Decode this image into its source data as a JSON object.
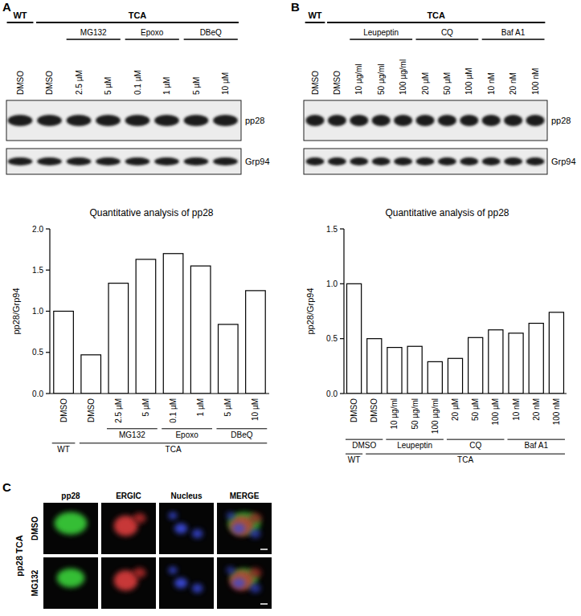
{
  "chart_data": [
    {
      "type": "bar",
      "title": "Quantitative analysis of pp28",
      "y_label": "pp28/Grp94",
      "categories": [
        "DMSO",
        "DMSO",
        "2.5 µM",
        "5 µM",
        "0.1 µM",
        "1 µM",
        "5 µM",
        "10 µM"
      ],
      "values": [
        1.0,
        0.47,
        1.34,
        1.63,
        1.7,
        1.55,
        0.84,
        1.25
      ],
      "color": "#ffffff",
      "ylim": [
        0,
        2
      ],
      "yticks": [
        {
          "value": 0,
          "label": "0.0"
        },
        0.5,
        {
          "value": 1,
          "label": "1.0"
        },
        1.5,
        {
          "value": 2,
          "label": "2.0"
        }
      ],
      "groups": [
        [
          {
            "label": "MG132",
            "categories": [
              2,
              3
            ]
          },
          {
            "label": "Epoxo",
            "categories": [
              4,
              5
            ]
          },
          {
            "label": "DBeQ",
            "categories": [
              6,
              7
            ]
          }
        ],
        [
          {
            "label": "WT",
            "categories": [
              0
            ]
          },
          {
            "label": "TCA",
            "categories": [
              1,
              2,
              3,
              4,
              5,
              6,
              7
            ]
          }
        ]
      ]
    },
    {
      "type": "bar",
      "title": "Quantitative analysis of pp28",
      "y_label": "pp28/Grp94",
      "categories": [
        "DMSO",
        "DMSO",
        "10 µg/ml",
        "50 µg/ml",
        "100 µg/ml",
        "20 µM",
        "50 µM",
        "100 µM",
        "10 nM",
        "20 nM",
        "100 nM"
      ],
      "values": [
        1.0,
        0.5,
        0.42,
        0.43,
        0.29,
        0.32,
        0.51,
        0.58,
        0.55,
        0.64,
        0.74
      ],
      "color": "#ffffff",
      "ylim": [
        0,
        1.5
      ],
      "yticks": [
        {
          "value": 0,
          "label": "0.0"
        },
        0.5,
        {
          "value": 1,
          "label": "1.0"
        },
        1.5
      ],
      "groups": [
        [
          {
            "label": "DMSO",
            "categories": [
              0,
              1
            ]
          },
          {
            "label": "Leupeptin",
            "categories": [
              2,
              3,
              4
            ]
          },
          {
            "label": "CQ",
            "categories": [
              5,
              6,
              7
            ]
          },
          {
            "label": "Baf A1",
            "categories": [
              8,
              9,
              10
            ]
          }
        ],
        [
          {
            "label": "WT",
            "categories": [
              0
            ]
          },
          {
            "label": "TCA",
            "categories": [
              1,
              2,
              3,
              4,
              5,
              6,
              7,
              8,
              9,
              10
            ]
          }
        ]
      ]
    }
  ],
  "blots": [
    {
      "panel": "A",
      "conditions": [
        {
          "label": "WT",
          "lanes": [
            0
          ]
        },
        {
          "label": "TCA",
          "lanes": [
            1,
            2,
            3,
            4,
            5,
            6,
            7
          ]
        }
      ],
      "treatments": [
        {
          "label": "MG132",
          "lanes": [
            2,
            3
          ]
        },
        {
          "label": "Epoxo",
          "lanes": [
            4,
            5
          ]
        },
        {
          "label": "DBeQ",
          "lanes": [
            6,
            7
          ]
        }
      ],
      "lanes": [
        "DMSO",
        "DMSO",
        "2.5 µM",
        "5 µM",
        "0.1 µM",
        "1 µM",
        "5 µM",
        "10 µM"
      ],
      "bands": [
        "pp28",
        "Grp94"
      ]
    },
    {
      "panel": "B",
      "conditions": [
        {
          "label": "WT",
          "lanes": [
            0
          ]
        },
        {
          "label": "TCA",
          "lanes": [
            1,
            2,
            3,
            4,
            5,
            6,
            7,
            8,
            9,
            10
          ]
        }
      ],
      "treatments": [
        {
          "label": "Leupeptin",
          "lanes": [
            2,
            3,
            4
          ]
        },
        {
          "label": "CQ",
          "lanes": [
            5,
            6,
            7
          ]
        },
        {
          "label": "Baf A1",
          "lanes": [
            8,
            9,
            10
          ]
        }
      ],
      "lanes": [
        "DMSO",
        "DMSO",
        "10 µg/ml",
        "50 µg/ml",
        "100 µg/ml",
        "20 µM",
        "50 µM",
        "100 µM",
        "10 nM",
        "20 nM",
        "100 nM"
      ],
      "bands": [
        "pp28",
        "Grp94"
      ]
    }
  ],
  "microscopy": {
    "panel": "C",
    "sample": "pp28 TCA",
    "channels": [
      "pp28",
      "ERGIC",
      "Nucleus",
      "MERGE"
    ],
    "rows": [
      "DMSO",
      "MG132"
    ]
  }
}
